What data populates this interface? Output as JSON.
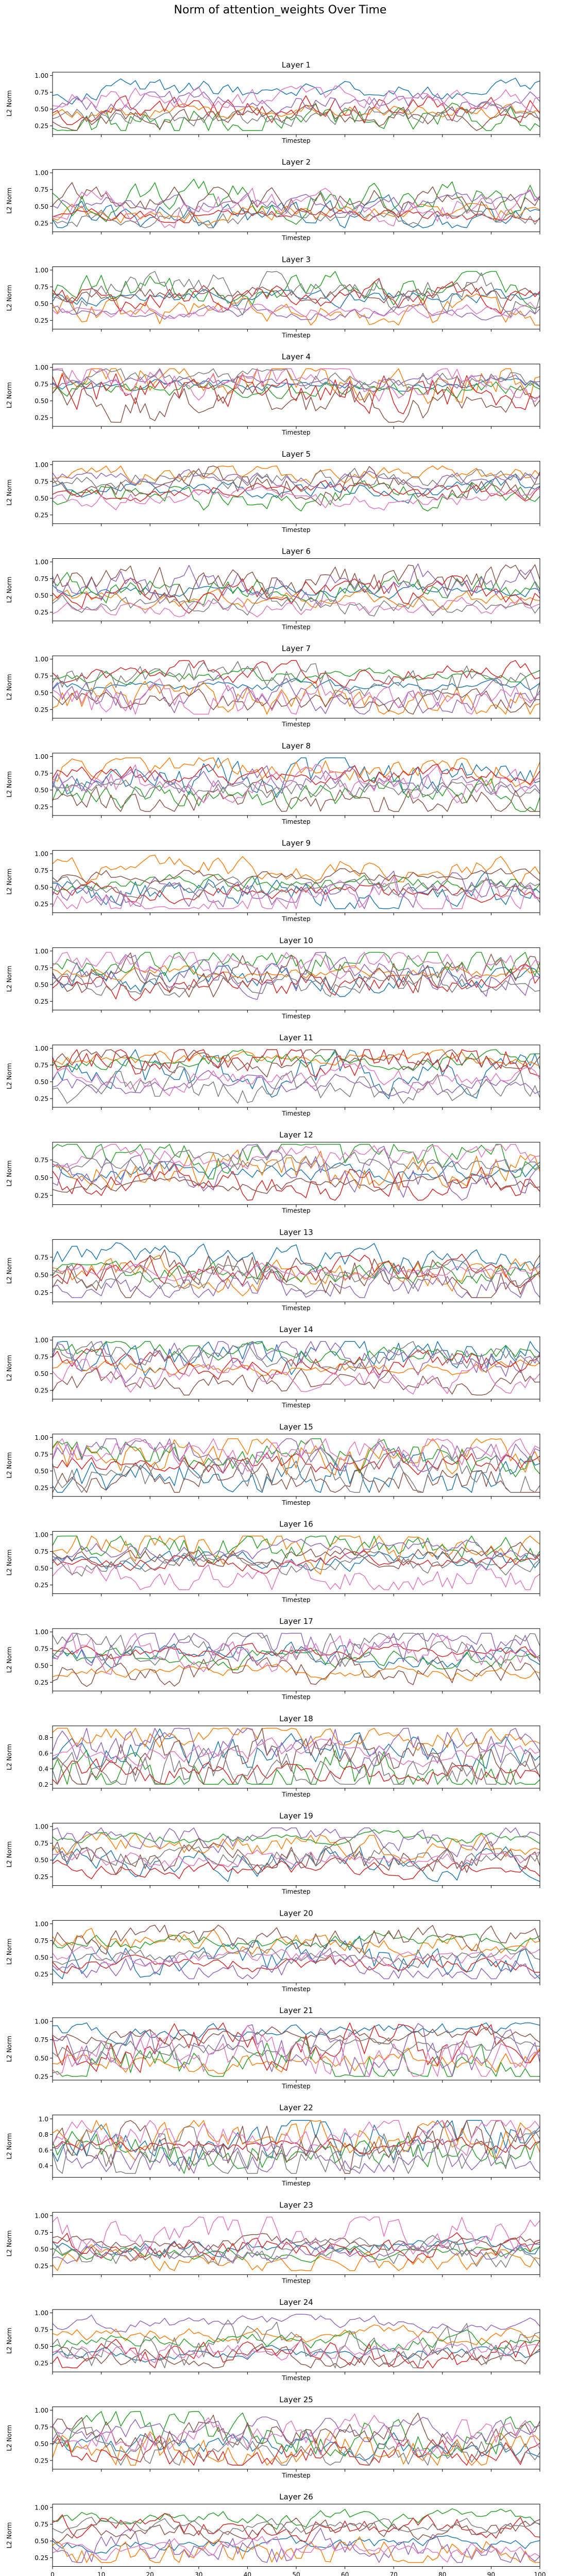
{
  "figure": {
    "title": "Norm of attention_weights Over Time",
    "series_colors": [
      "#1f77b4",
      "#ff7f0e",
      "#2ca02c",
      "#d62728",
      "#9467bd",
      "#8c564b",
      "#e377c2",
      "#7f7f7f"
    ]
  },
  "chart_data": {
    "type": "line",
    "layout": "26 vertically stacked subplots sharing x-axis",
    "series_per_subplot": 8,
    "points_per_series": 101,
    "x_range": [
      0,
      100
    ],
    "xlabel": "Timestep",
    "ylabel": "L2 Norm",
    "x_ticks": [
      0,
      10,
      20,
      30,
      40,
      50,
      60,
      70,
      80,
      90,
      100
    ],
    "grid": false,
    "legend": "none",
    "subplots": [
      {
        "title": "Layer 1",
        "ylim": [
          0.12,
          1.05
        ],
        "y_ticks": [
          "0.25",
          "0.50",
          "0.75",
          "1.00"
        ],
        "y_tick_values": [
          0.25,
          0.5,
          0.75,
          1.0
        ]
      },
      {
        "title": "Layer 2",
        "ylim": [
          0.12,
          1.05
        ],
        "y_ticks": [
          "0.25",
          "0.50",
          "0.75",
          "1.00"
        ],
        "y_tick_values": [
          0.25,
          0.5,
          0.75,
          1.0
        ]
      },
      {
        "title": "Layer 3",
        "ylim": [
          0.12,
          1.05
        ],
        "y_ticks": [
          "0.25",
          "0.50",
          "0.75",
          "1.00"
        ],
        "y_tick_values": [
          0.25,
          0.5,
          0.75,
          1.0
        ]
      },
      {
        "title": "Layer 4",
        "ylim": [
          0.12,
          1.05
        ],
        "y_ticks": [
          "0.25",
          "0.50",
          "0.75",
          "1.00"
        ],
        "y_tick_values": [
          0.25,
          0.5,
          0.75,
          1.0
        ]
      },
      {
        "title": "Layer 5",
        "ylim": [
          0.12,
          1.05
        ],
        "y_ticks": [
          "0.25",
          "0.50",
          "0.75",
          "1.00"
        ],
        "y_tick_values": [
          0.25,
          0.5,
          0.75,
          1.0
        ]
      },
      {
        "title": "Layer 6",
        "ylim": [
          0.12,
          1.05
        ],
        "y_ticks": [
          "0.25",
          "0.50",
          "0.75",
          "1.00"
        ],
        "y_tick_values": [
          0.25,
          0.5,
          0.75,
          1.0
        ]
      },
      {
        "title": "Layer 7",
        "ylim": [
          0.12,
          1.05
        ],
        "y_ticks": [
          "0.25",
          "0.50",
          "0.75",
          "1.00"
        ],
        "y_tick_values": [
          0.25,
          0.5,
          0.75,
          1.0
        ]
      },
      {
        "title": "Layer 8",
        "ylim": [
          0.12,
          1.05
        ],
        "y_ticks": [
          "0.25",
          "0.50",
          "0.75",
          "1.00"
        ],
        "y_tick_values": [
          0.25,
          0.5,
          0.75,
          1.0
        ]
      },
      {
        "title": "Layer 9",
        "ylim": [
          0.12,
          1.05
        ],
        "y_ticks": [
          "0.25",
          "0.50",
          "0.75",
          "1.00"
        ],
        "y_tick_values": [
          0.25,
          0.5,
          0.75,
          1.0
        ]
      },
      {
        "title": "Layer 10",
        "ylim": [
          0.12,
          1.05
        ],
        "y_ticks": [
          "0.25",
          "0.50",
          "0.75",
          "1.00"
        ],
        "y_tick_values": [
          0.25,
          0.5,
          0.75,
          1.0
        ]
      },
      {
        "title": "Layer 11",
        "ylim": [
          0.12,
          1.05
        ],
        "y_ticks": [
          "0.25",
          "0.50",
          "0.75",
          "1.00"
        ],
        "y_tick_values": [
          0.25,
          0.5,
          0.75,
          1.0
        ]
      },
      {
        "title": "Layer 12",
        "ylim": [
          0.12,
          1.0
        ],
        "y_ticks": [
          "0.25",
          "0.50",
          "0.75"
        ],
        "y_tick_values": [
          0.25,
          0.5,
          0.75
        ]
      },
      {
        "title": "Layer 13",
        "ylim": [
          0.12,
          1.0
        ],
        "y_ticks": [
          "0.25",
          "0.50",
          "0.75"
        ],
        "y_tick_values": [
          0.25,
          0.5,
          0.75
        ]
      },
      {
        "title": "Layer 14",
        "ylim": [
          0.12,
          1.05
        ],
        "y_ticks": [
          "0.25",
          "0.50",
          "0.75",
          "1.00"
        ],
        "y_tick_values": [
          0.25,
          0.5,
          0.75,
          1.0
        ]
      },
      {
        "title": "Layer 15",
        "ylim": [
          0.12,
          1.05
        ],
        "y_ticks": [
          "0.25",
          "0.50",
          "0.75",
          "1.00"
        ],
        "y_tick_values": [
          0.25,
          0.5,
          0.75,
          1.0
        ]
      },
      {
        "title": "Layer 16",
        "ylim": [
          0.12,
          1.05
        ],
        "y_ticks": [
          "0.25",
          "0.50",
          "0.75",
          "1.00"
        ],
        "y_tick_values": [
          0.25,
          0.5,
          0.75,
          1.0
        ]
      },
      {
        "title": "Layer 17",
        "ylim": [
          0.12,
          1.05
        ],
        "y_ticks": [
          "0.25",
          "0.50",
          "0.75",
          "1.00"
        ],
        "y_tick_values": [
          0.25,
          0.5,
          0.75,
          1.0
        ]
      },
      {
        "title": "Layer 18",
        "ylim": [
          0.15,
          0.95
        ],
        "y_ticks": [
          "0.2",
          "0.4",
          "0.6",
          "0.8"
        ],
        "y_tick_values": [
          0.2,
          0.4,
          0.6,
          0.8
        ]
      },
      {
        "title": "Layer 19",
        "ylim": [
          0.12,
          1.05
        ],
        "y_ticks": [
          "0.25",
          "0.50",
          "0.75",
          "1.00"
        ],
        "y_tick_values": [
          0.25,
          0.5,
          0.75,
          1.0
        ]
      },
      {
        "title": "Layer 20",
        "ylim": [
          0.12,
          1.05
        ],
        "y_ticks": [
          "0.25",
          "0.50",
          "0.75",
          "1.00"
        ],
        "y_tick_values": [
          0.25,
          0.5,
          0.75,
          1.0
        ]
      },
      {
        "title": "Layer 21",
        "ylim": [
          0.2,
          1.05
        ],
        "y_ticks": [
          "0.25",
          "0.50",
          "0.75",
          "1.00"
        ],
        "y_tick_values": [
          0.25,
          0.5,
          0.75,
          1.0
        ]
      },
      {
        "title": "Layer 22",
        "ylim": [
          0.25,
          1.05
        ],
        "y_ticks": [
          "0.4",
          "0.6",
          "0.8",
          "1.0"
        ],
        "y_tick_values": [
          0.4,
          0.6,
          0.8,
          1.0
        ]
      },
      {
        "title": "Layer 23",
        "ylim": [
          0.12,
          1.05
        ],
        "y_ticks": [
          "0.25",
          "0.50",
          "0.75",
          "1.00"
        ],
        "y_tick_values": [
          0.25,
          0.5,
          0.75,
          1.0
        ]
      },
      {
        "title": "Layer 24",
        "ylim": [
          0.12,
          1.05
        ],
        "y_ticks": [
          "0.25",
          "0.50",
          "0.75",
          "1.00"
        ],
        "y_tick_values": [
          0.25,
          0.5,
          0.75,
          1.0
        ]
      },
      {
        "title": "Layer 25",
        "ylim": [
          0.12,
          1.05
        ],
        "y_ticks": [
          "0.25",
          "0.50",
          "0.75",
          "1.00"
        ],
        "y_tick_values": [
          0.25,
          0.5,
          0.75,
          1.0
        ]
      },
      {
        "title": "Layer 26",
        "ylim": [
          0.12,
          1.05
        ],
        "y_ticks": [
          "0.25",
          "0.50",
          "0.75",
          "1.00"
        ],
        "y_tick_values": [
          0.25,
          0.5,
          0.75,
          1.0
        ]
      }
    ]
  }
}
